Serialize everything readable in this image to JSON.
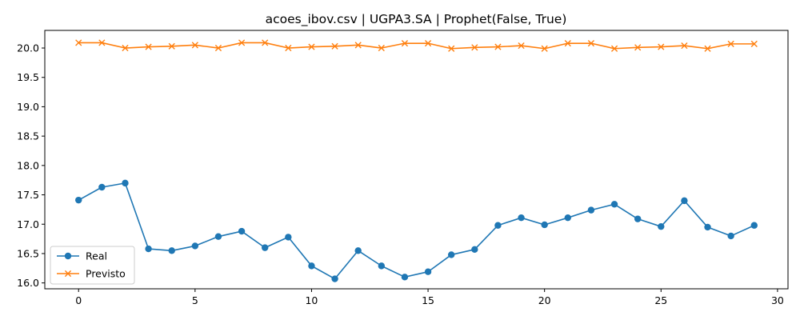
{
  "chart_data": {
    "type": "line",
    "title": "acoes_ibov.csv | UGPA3.SA | Prophet(False, True)",
    "xlabel": "",
    "ylabel": "",
    "xlim": [
      -1.45,
      30.45
    ],
    "ylim": [
      15.9,
      20.3
    ],
    "x_ticks": [
      0,
      5,
      10,
      15,
      20,
      25,
      30
    ],
    "y_ticks": [
      16.0,
      16.5,
      17.0,
      17.5,
      18.0,
      18.5,
      19.0,
      19.5,
      20.0
    ],
    "grid": false,
    "legend_position": "lower-left",
    "x": [
      0,
      1,
      2,
      3,
      4,
      5,
      6,
      7,
      8,
      9,
      10,
      11,
      12,
      13,
      14,
      15,
      16,
      17,
      18,
      19,
      20,
      21,
      22,
      23,
      24,
      25,
      26,
      27,
      28,
      29
    ],
    "series": [
      {
        "name": "Real",
        "color": "#1f77b4",
        "marker": "circle",
        "values": [
          17.41,
          17.63,
          17.7,
          16.58,
          16.55,
          16.63,
          16.79,
          16.88,
          16.6,
          16.78,
          16.29,
          16.07,
          16.55,
          16.29,
          16.1,
          16.19,
          16.48,
          16.57,
          16.98,
          17.11,
          16.99,
          17.11,
          17.24,
          17.34,
          17.09,
          16.96,
          17.4,
          16.95,
          16.8,
          16.98
        ]
      },
      {
        "name": "Previsto",
        "color": "#ff7f0e",
        "marker": "x",
        "values": [
          20.09,
          20.09,
          20.0,
          20.02,
          20.03,
          20.05,
          20.0,
          20.09,
          20.09,
          20.0,
          20.02,
          20.03,
          20.05,
          20.0,
          20.08,
          20.08,
          19.99,
          20.01,
          20.02,
          20.04,
          19.99,
          20.08,
          20.08,
          19.99,
          20.01,
          20.02,
          20.04,
          19.99,
          20.07,
          20.07
        ]
      }
    ]
  }
}
